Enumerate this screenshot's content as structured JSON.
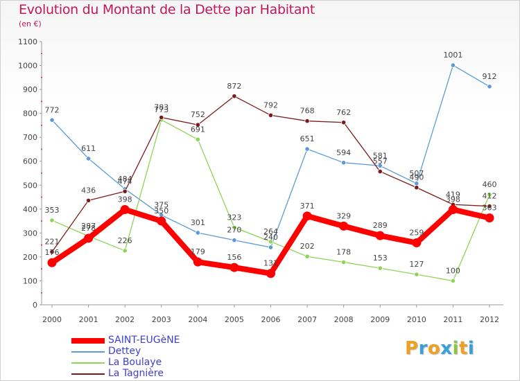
{
  "chart_data": {
    "type": "line",
    "title": "Evolution du Montant de la Dette par Habitant",
    "subtitle": "(en €)",
    "x": [
      "2000",
      "2001",
      "2002",
      "2003",
      "2004",
      "2005",
      "2006",
      "2007",
      "2008",
      "2009",
      "2010",
      "2011",
      "2012"
    ],
    "ylim": [
      0,
      1100
    ],
    "yticks": [
      0,
      100,
      200,
      300,
      400,
      500,
      600,
      700,
      800,
      900,
      1000,
      1100
    ],
    "grid": false,
    "legend_position": "bottom-left",
    "series": [
      {
        "name": "SAINT-EUGèNE",
        "color": "#ff0000",
        "values": [
          176,
          278,
          398,
          350,
          179,
          156,
          131,
          371,
          329,
          289,
          259,
          398,
          363
        ]
      },
      {
        "name": "Dettey",
        "color": "#5a9bd5",
        "values": [
          772,
          611,
          484,
          375,
          301,
          270,
          240,
          651,
          594,
          581,
          507,
          1001,
          912
        ]
      },
      {
        "name": "La Boulaye",
        "color": "#8ed455",
        "values": [
          353,
          287,
          226,
          773,
          691,
          323,
          264,
          202,
          178,
          153,
          127,
          100,
          460
        ]
      },
      {
        "name": "La Tagnière",
        "color": "#7a1a1a",
        "values": [
          221,
          436,
          474,
          783,
          752,
          872,
          792,
          768,
          762,
          557,
          490,
          419,
          412
        ]
      }
    ]
  },
  "logo": {
    "letters": [
      "P",
      "r",
      "o",
      "x",
      "i",
      "t",
      "i"
    ]
  }
}
